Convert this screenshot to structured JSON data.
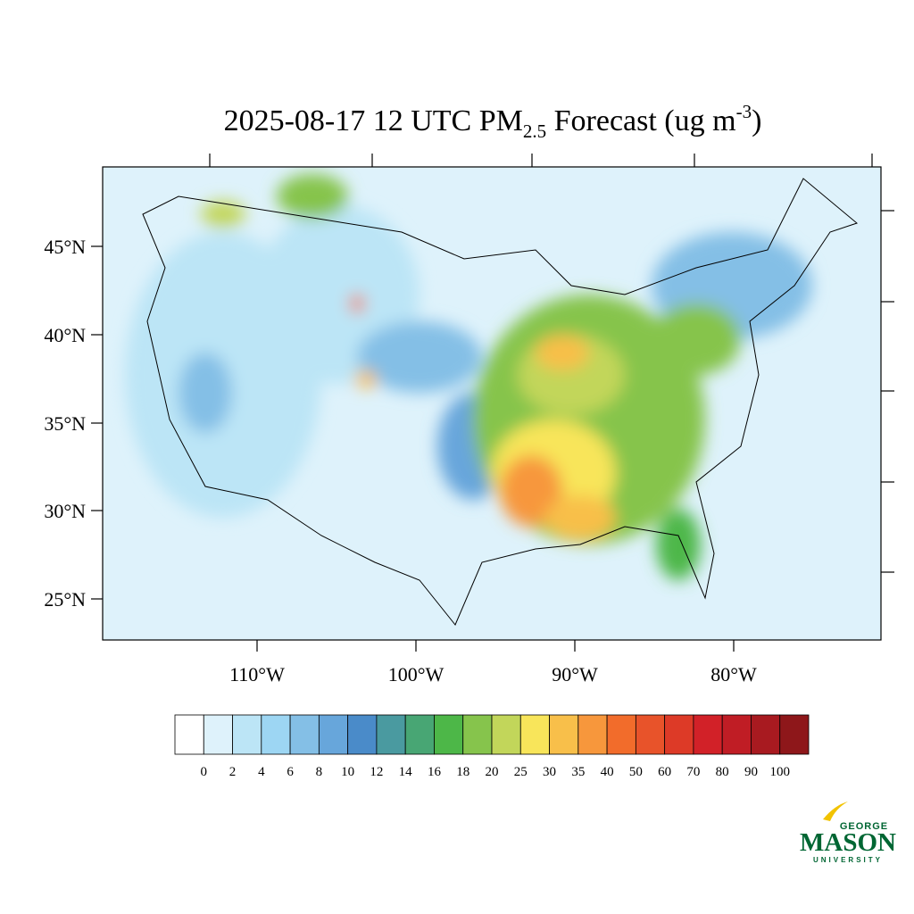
{
  "header": {
    "title_main": "2025-08-17 12 UTC PM",
    "title_sub": "2.5",
    "title_rest": " Forecast (ug m",
    "title_sup": "-3",
    "title_end": ")"
  },
  "map": {
    "lat_labels": [
      "45°N",
      "40°N",
      "35°N",
      "30°N",
      "25°N"
    ],
    "lon_labels": [
      "110°W",
      "100°W",
      "90°W",
      "80°W"
    ]
  },
  "colorbar": {
    "levels": [
      0,
      2,
      4,
      6,
      8,
      10,
      12,
      14,
      16,
      18,
      20,
      25,
      30,
      35,
      40,
      50,
      60,
      70,
      80,
      90,
      100
    ],
    "colors": [
      "#ffffff",
      "#def2fb",
      "#bce5f6",
      "#9dd6f3",
      "#84bfe6",
      "#67a6db",
      "#4a8bc9",
      "#4a9aa0",
      "#48a674",
      "#4db748",
      "#86c44c",
      "#c2d65a",
      "#f8e55a",
      "#f8bf4a",
      "#f7973c",
      "#f26c2b",
      "#e8532a",
      "#dd3a27",
      "#d22128",
      "#c01d25",
      "#a81a20",
      "#8e171a"
    ]
  },
  "logo": {
    "top": "GEORGE",
    "main": "MASON",
    "bottom": "UNIVERSITY"
  }
}
